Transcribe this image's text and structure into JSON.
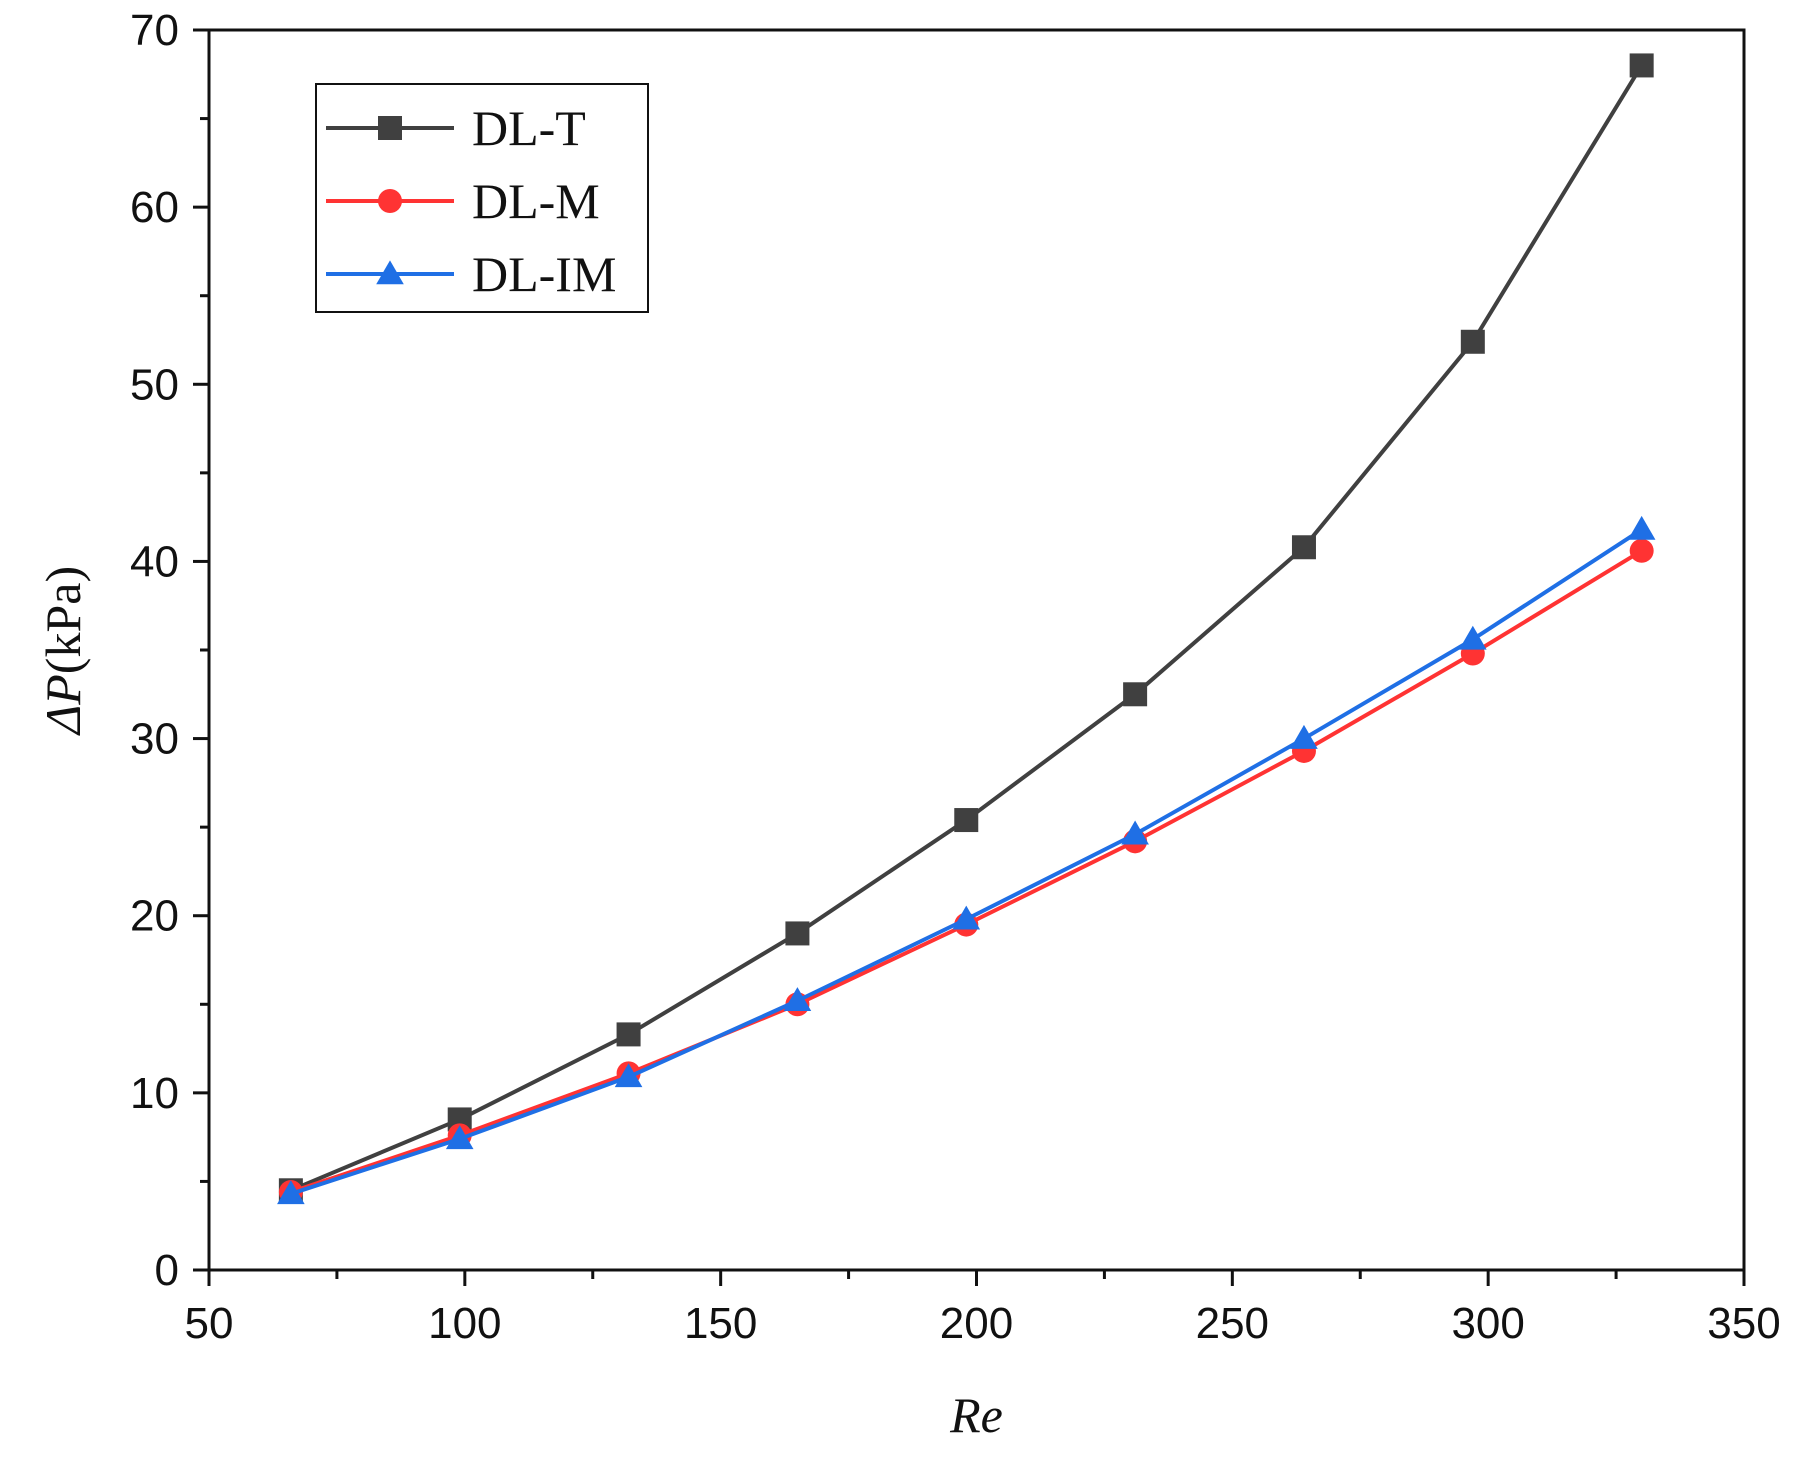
{
  "chart_data": {
    "type": "line",
    "title": "",
    "xlabel": "Re",
    "ylabel_symbol": "ΔP",
    "ylabel_unit": "(kPa)",
    "xlim": [
      50,
      350
    ],
    "ylim": [
      0,
      70
    ],
    "x_ticks": [
      50,
      100,
      150,
      200,
      250,
      300,
      350
    ],
    "y_ticks": [
      0,
      10,
      20,
      30,
      40,
      50,
      60,
      70
    ],
    "x_minor_step": 25,
    "y_minor_step": 5,
    "grid": false,
    "legend_position": "top-left",
    "x": [
      66,
      99,
      132,
      165,
      198,
      231,
      264,
      297,
      330
    ],
    "series": [
      {
        "name": "DL-T",
        "marker": "square",
        "color": "#404040",
        "values": [
          4.5,
          8.5,
          13.3,
          19.0,
          25.4,
          32.5,
          40.8,
          52.4,
          68.0
        ]
      },
      {
        "name": "DL-M",
        "marker": "circle",
        "color": "#ff3333",
        "values": [
          4.4,
          7.6,
          11.1,
          15.0,
          19.5,
          24.2,
          29.3,
          34.8,
          40.6
        ]
      },
      {
        "name": "DL-IM",
        "marker": "triangle",
        "color": "#1f6fe5",
        "values": [
          4.3,
          7.4,
          10.9,
          15.2,
          19.8,
          24.6,
          30.0,
          35.6,
          41.8
        ]
      }
    ]
  }
}
